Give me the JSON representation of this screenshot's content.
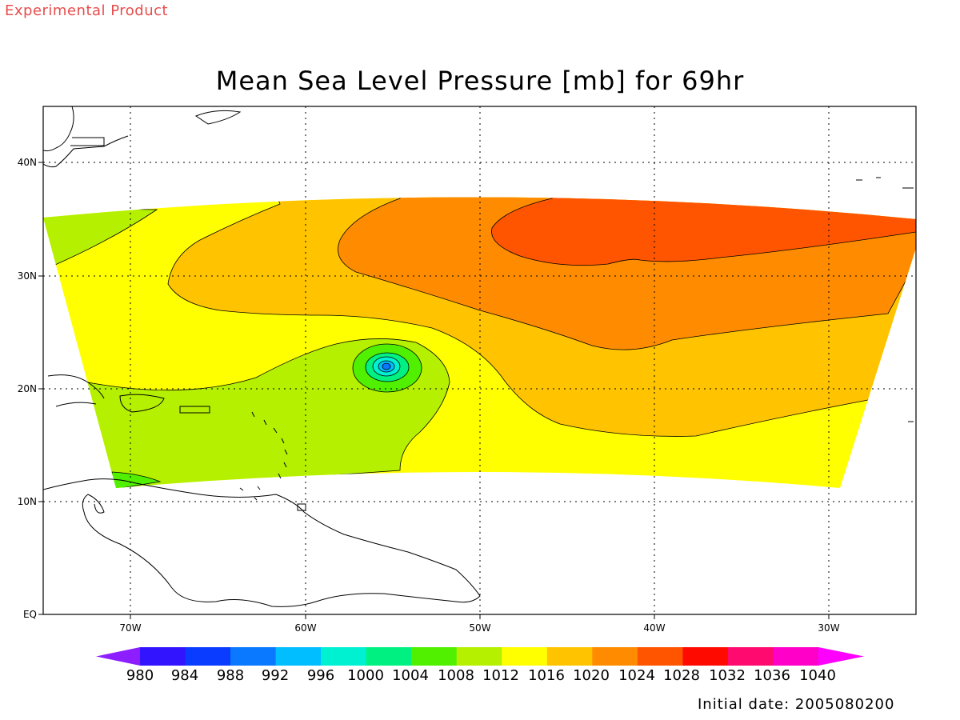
{
  "header": {
    "tag": "Experimental Product",
    "title": "Mean Sea Level Pressure [mb] for 69hr"
  },
  "map": {
    "lat_labels": [
      "40N",
      "30N",
      "20N",
      "10N",
      "EQ"
    ],
    "lon_labels": [
      "70W",
      "60W",
      "50W",
      "40W",
      "30W"
    ]
  },
  "colorbar": {
    "levels": [
      "980",
      "984",
      "988",
      "992",
      "996",
      "1000",
      "1004",
      "1008",
      "1012",
      "1016",
      "1020",
      "1024",
      "1028",
      "1032",
      "1036",
      "1040"
    ],
    "colors": [
      "#8c1eff",
      "#3214ff",
      "#0a3cff",
      "#0a78ff",
      "#00beff",
      "#00f0d2",
      "#00f082",
      "#50f000",
      "#b4f000",
      "#ffff00",
      "#ffc300",
      "#ff8c00",
      "#ff5500",
      "#ff0a00",
      "#ff0a6e",
      "#ff00c8",
      "#ff00ff"
    ]
  },
  "footer": {
    "initial_date": "Initial date: 2005080200"
  }
}
